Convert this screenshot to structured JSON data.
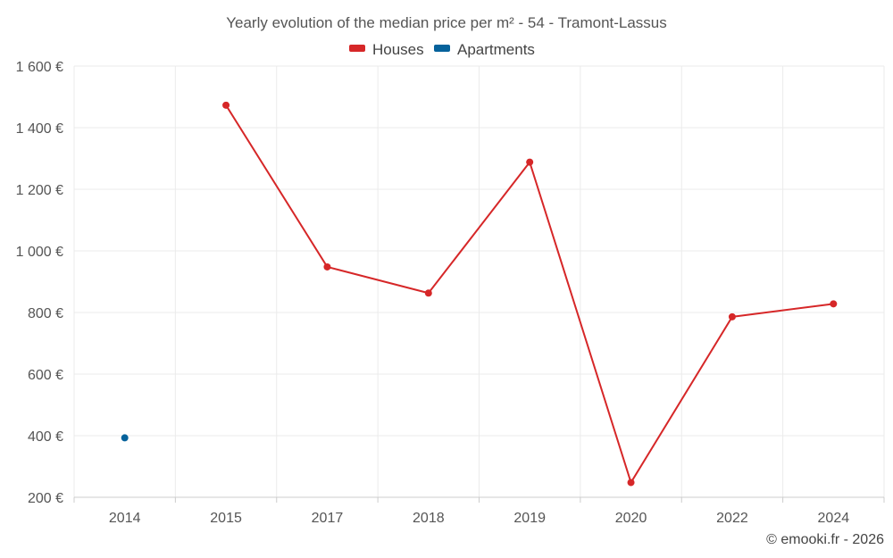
{
  "chart_data": {
    "type": "line",
    "title": "Yearly evolution of the median price per m² - 54 - Tramont-Lassus",
    "categories": [
      "2014",
      "2015",
      "2017",
      "2018",
      "2019",
      "2020",
      "2022",
      "2024"
    ],
    "y_ticks": [
      "200 €",
      "400 €",
      "600 €",
      "800 €",
      "1 000 €",
      "1 200 €",
      "1 400 €",
      "1 600 €"
    ],
    "ylim": [
      200,
      1600
    ],
    "xlabel": "",
    "ylabel": "",
    "legend_position": "top-center",
    "series": [
      {
        "name": "Houses",
        "color": "#d62728",
        "values": [
          null,
          1473,
          948,
          863,
          1288,
          248,
          786,
          828
        ]
      },
      {
        "name": "Apartments",
        "color": "#06629b",
        "values": [
          393,
          null,
          null,
          null,
          null,
          null,
          null,
          null
        ]
      }
    ]
  },
  "credit": "© emooki.fr - 2026"
}
